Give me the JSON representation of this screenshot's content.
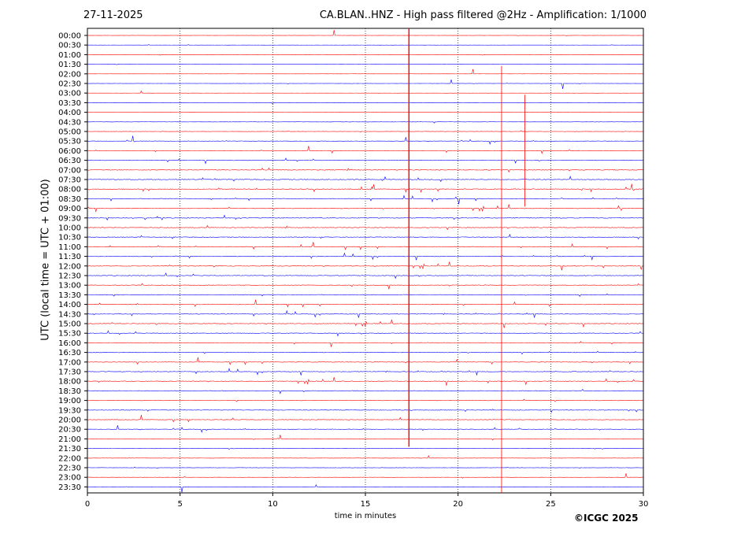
{
  "header": {
    "date": "27-11-2025",
    "title": "CA.BLAN..HNZ - High pass filtered @2Hz - Amplification: 1/1000"
  },
  "footer": {
    "copyright": "©ICGC 2025"
  },
  "chart_data": {
    "type": "line",
    "title": "CA.BLAN..HNZ - High pass filtered @2Hz - Amplification: 1/1000",
    "xlabel": "time in minutes",
    "ylabel": "UTC (local time = UTC + 01:00)",
    "xlim": [
      0,
      30
    ],
    "x_ticks": [
      0,
      5,
      10,
      15,
      20,
      25,
      30
    ],
    "grid": "vertical dotted lines at x ticks",
    "series_colors": [
      "#ff0000",
      "#0000ff"
    ],
    "row_labels": [
      "00:00",
      "00:30",
      "01:00",
      "01:30",
      "02:00",
      "02:30",
      "03:00",
      "03:30",
      "04:00",
      "04:30",
      "05:00",
      "05:30",
      "06:00",
      "06:30",
      "07:00",
      "07:30",
      "08:00",
      "08:30",
      "09:00",
      "09:30",
      "10:00",
      "10:30",
      "11:00",
      "11:30",
      "12:00",
      "12:30",
      "13:00",
      "13:30",
      "14:00",
      "14:30",
      "15:00",
      "15:30",
      "16:00",
      "16:30",
      "17:00",
      "17:30",
      "18:00",
      "18:30",
      "19:00",
      "19:30",
      "20:00",
      "20:30",
      "21:00",
      "21:30",
      "22:00",
      "22:30",
      "23:00",
      "23:30"
    ],
    "row_noise_level": [
      0.2,
      0.2,
      0.2,
      0.2,
      0.2,
      0.2,
      0.2,
      0.2,
      0.25,
      0.3,
      0.4,
      0.5,
      0.5,
      0.7,
      0.9,
      1.0,
      1.0,
      0.9,
      0.9,
      0.9,
      0.9,
      0.9,
      0.9,
      0.8,
      0.8,
      0.8,
      0.8,
      0.8,
      0.8,
      0.8,
      0.8,
      0.8,
      0.8,
      0.8,
      0.8,
      0.8,
      0.8,
      0.8,
      0.7,
      0.7,
      0.7,
      0.6,
      0.5,
      0.5,
      0.4,
      0.4,
      0.3,
      0.2
    ],
    "vertical_spikes": [
      {
        "x": 17.35,
        "rows": [
          0,
          42
        ],
        "color": "#ff0000"
      },
      {
        "x": 22.35,
        "rows": [
          4,
          48
        ],
        "color": "#ff0000"
      },
      {
        "x": 23.6,
        "rows": [
          7,
          17
        ],
        "color": "#ff0000"
      }
    ]
  }
}
